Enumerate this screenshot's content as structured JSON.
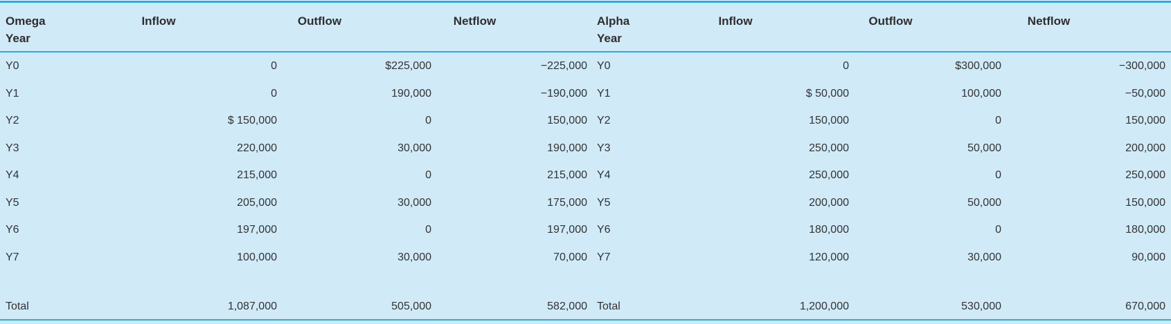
{
  "colors": {
    "background": "#d0eaf8",
    "rule": "#29abe2",
    "text": "#333333"
  },
  "tables": [
    {
      "header": {
        "year_line1": "Omega",
        "year_line2": "Year",
        "inflow": "Inflow",
        "outflow": "Outflow",
        "netflow": "Netflow"
      },
      "rows": [
        {
          "year": "Y0",
          "inflow": "0",
          "outflow": "$225,000",
          "netflow": "−225,000"
        },
        {
          "year": "Y1",
          "inflow": "0",
          "outflow": "190,000",
          "netflow": "−190,000"
        },
        {
          "year": "Y2",
          "inflow": "$ 150,000",
          "outflow": "0",
          "netflow": "150,000"
        },
        {
          "year": "Y3",
          "inflow": "220,000",
          "outflow": "30,000",
          "netflow": "190,000"
        },
        {
          "year": "Y4",
          "inflow": "215,000",
          "outflow": "0",
          "netflow": "215,000"
        },
        {
          "year": "Y5",
          "inflow": "205,000",
          "outflow": "30,000",
          "netflow": "175,000"
        },
        {
          "year": "Y6",
          "inflow": "197,000",
          "outflow": "0",
          "netflow": "197,000"
        },
        {
          "year": "Y7",
          "inflow": "100,000",
          "outflow": "30,000",
          "netflow": "70,000"
        }
      ],
      "total": {
        "year": "Total",
        "inflow": "1,087,000",
        "outflow": "505,000",
        "netflow": "582,000"
      }
    },
    {
      "header": {
        "year_line1": "Alpha",
        "year_line2": "Year",
        "inflow": "Inflow",
        "outflow": "Outflow",
        "netflow": "Netflow"
      },
      "rows": [
        {
          "year": "Y0",
          "inflow": "0",
          "outflow": "$300,000",
          "netflow": "−300,000"
        },
        {
          "year": "Y1",
          "inflow": "$ 50,000",
          "outflow": "100,000",
          "netflow": "−50,000"
        },
        {
          "year": "Y2",
          "inflow": "150,000",
          "outflow": "0",
          "netflow": "150,000"
        },
        {
          "year": "Y3",
          "inflow": "250,000",
          "outflow": "50,000",
          "netflow": "200,000"
        },
        {
          "year": "Y4",
          "inflow": "250,000",
          "outflow": "0",
          "netflow": "250,000"
        },
        {
          "year": "Y5",
          "inflow": "200,000",
          "outflow": "50,000",
          "netflow": "150,000"
        },
        {
          "year": "Y6",
          "inflow": "180,000",
          "outflow": "0",
          "netflow": "180,000"
        },
        {
          "year": "Y7",
          "inflow": "120,000",
          "outflow": "30,000",
          "netflow": "90,000"
        }
      ],
      "total": {
        "year": "Total",
        "inflow": "1,200,000",
        "outflow": "530,000",
        "netflow": "670,000"
      }
    }
  ]
}
